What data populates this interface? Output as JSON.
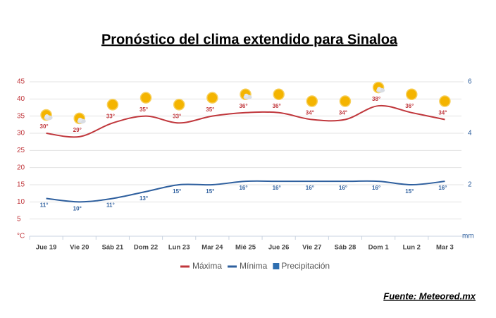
{
  "chart_data": {
    "type": "line",
    "title": "Pronóstico del clima extendido para Sinaloa",
    "source": "Fuente: Meteored.mx",
    "categories": [
      "Jue 19",
      "Vie 20",
      "Sáb 21",
      "Dom 22",
      "Lun 23",
      "Mar 24",
      "Mié 25",
      "Jue 26",
      "Vie 27",
      "Sáb 28",
      "Dom 1",
      "Lun 2",
      "Mar 3"
    ],
    "series": [
      {
        "name": "Máxima",
        "color": "#c0373c",
        "values": [
          30,
          29,
          33,
          35,
          33,
          35,
          36,
          36,
          34,
          34,
          38,
          36,
          34
        ],
        "value_labels": [
          "30°",
          "29°",
          "33°",
          "35°",
          "33°",
          "35°",
          "36°",
          "36°",
          "34°",
          "34°",
          "38°",
          "36°",
          "34°"
        ]
      },
      {
        "name": "Mínima",
        "color": "#2e5f9e",
        "values": [
          11,
          10,
          11,
          13,
          15,
          15,
          16,
          16,
          16,
          16,
          16,
          15,
          16
        ],
        "value_labels": [
          "11°",
          "10°",
          "11°",
          "13°",
          "15°",
          "15°",
          "16°",
          "16°",
          "16°",
          "16°",
          "16°",
          "15°",
          "16°"
        ]
      },
      {
        "name": "Precipitación",
        "color": "#2f6fb0",
        "type": "bar",
        "axis": "y2",
        "values": [
          null,
          null,
          null,
          null,
          null,
          null,
          null,
          null,
          null,
          null,
          null,
          null,
          null
        ]
      }
    ],
    "ylim": [
      0,
      45
    ],
    "yticks": [
      {
        "value": 0,
        "label": "°C"
      },
      5,
      10,
      15,
      20,
      25,
      30,
      35,
      40,
      45
    ],
    "y2lim": [
      0,
      6
    ],
    "y2ticks": [
      {
        "value": 0,
        "label": "mm"
      },
      2,
      4,
      6
    ],
    "grid": true
  }
}
